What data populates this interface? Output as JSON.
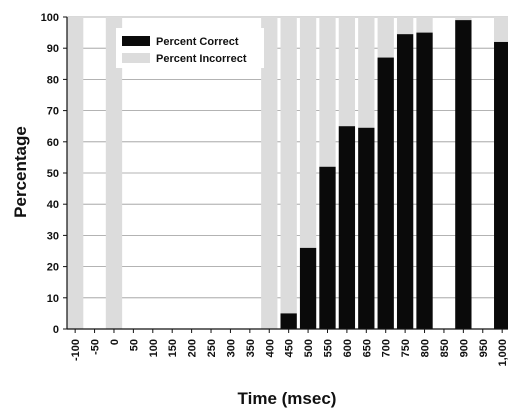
{
  "chart_data": {
    "type": "bar",
    "stacked": true,
    "xlabel": "Time (msec)",
    "ylabel": "Percentage",
    "ylim": [
      0,
      100
    ],
    "yticks": [
      0,
      10,
      20,
      30,
      40,
      50,
      60,
      70,
      80,
      90,
      100
    ],
    "categories": [
      "-100",
      "-50",
      "0",
      "50",
      "100",
      "150",
      "200",
      "250",
      "300",
      "350",
      "400",
      "450",
      "500",
      "550",
      "600",
      "650",
      "700",
      "750",
      "800",
      "850",
      "900",
      "950",
      "1,000"
    ],
    "series": [
      {
        "name": "Percent Correct",
        "color": "#0a0a0a",
        "values": [
          0,
          null,
          0,
          null,
          null,
          null,
          null,
          null,
          null,
          null,
          0,
          5,
          26,
          52,
          65,
          64.5,
          87,
          94.5,
          95,
          null,
          99,
          null,
          92
        ]
      },
      {
        "name": "Percent Incorrect",
        "color": "#dcdcdc",
        "values": [
          100,
          null,
          100,
          null,
          null,
          null,
          null,
          null,
          null,
          null,
          100,
          95,
          74,
          48,
          35,
          35.5,
          13,
          5.5,
          5,
          null,
          1,
          null,
          8
        ]
      }
    ],
    "grid": "horizontal",
    "legend": "top-left"
  }
}
